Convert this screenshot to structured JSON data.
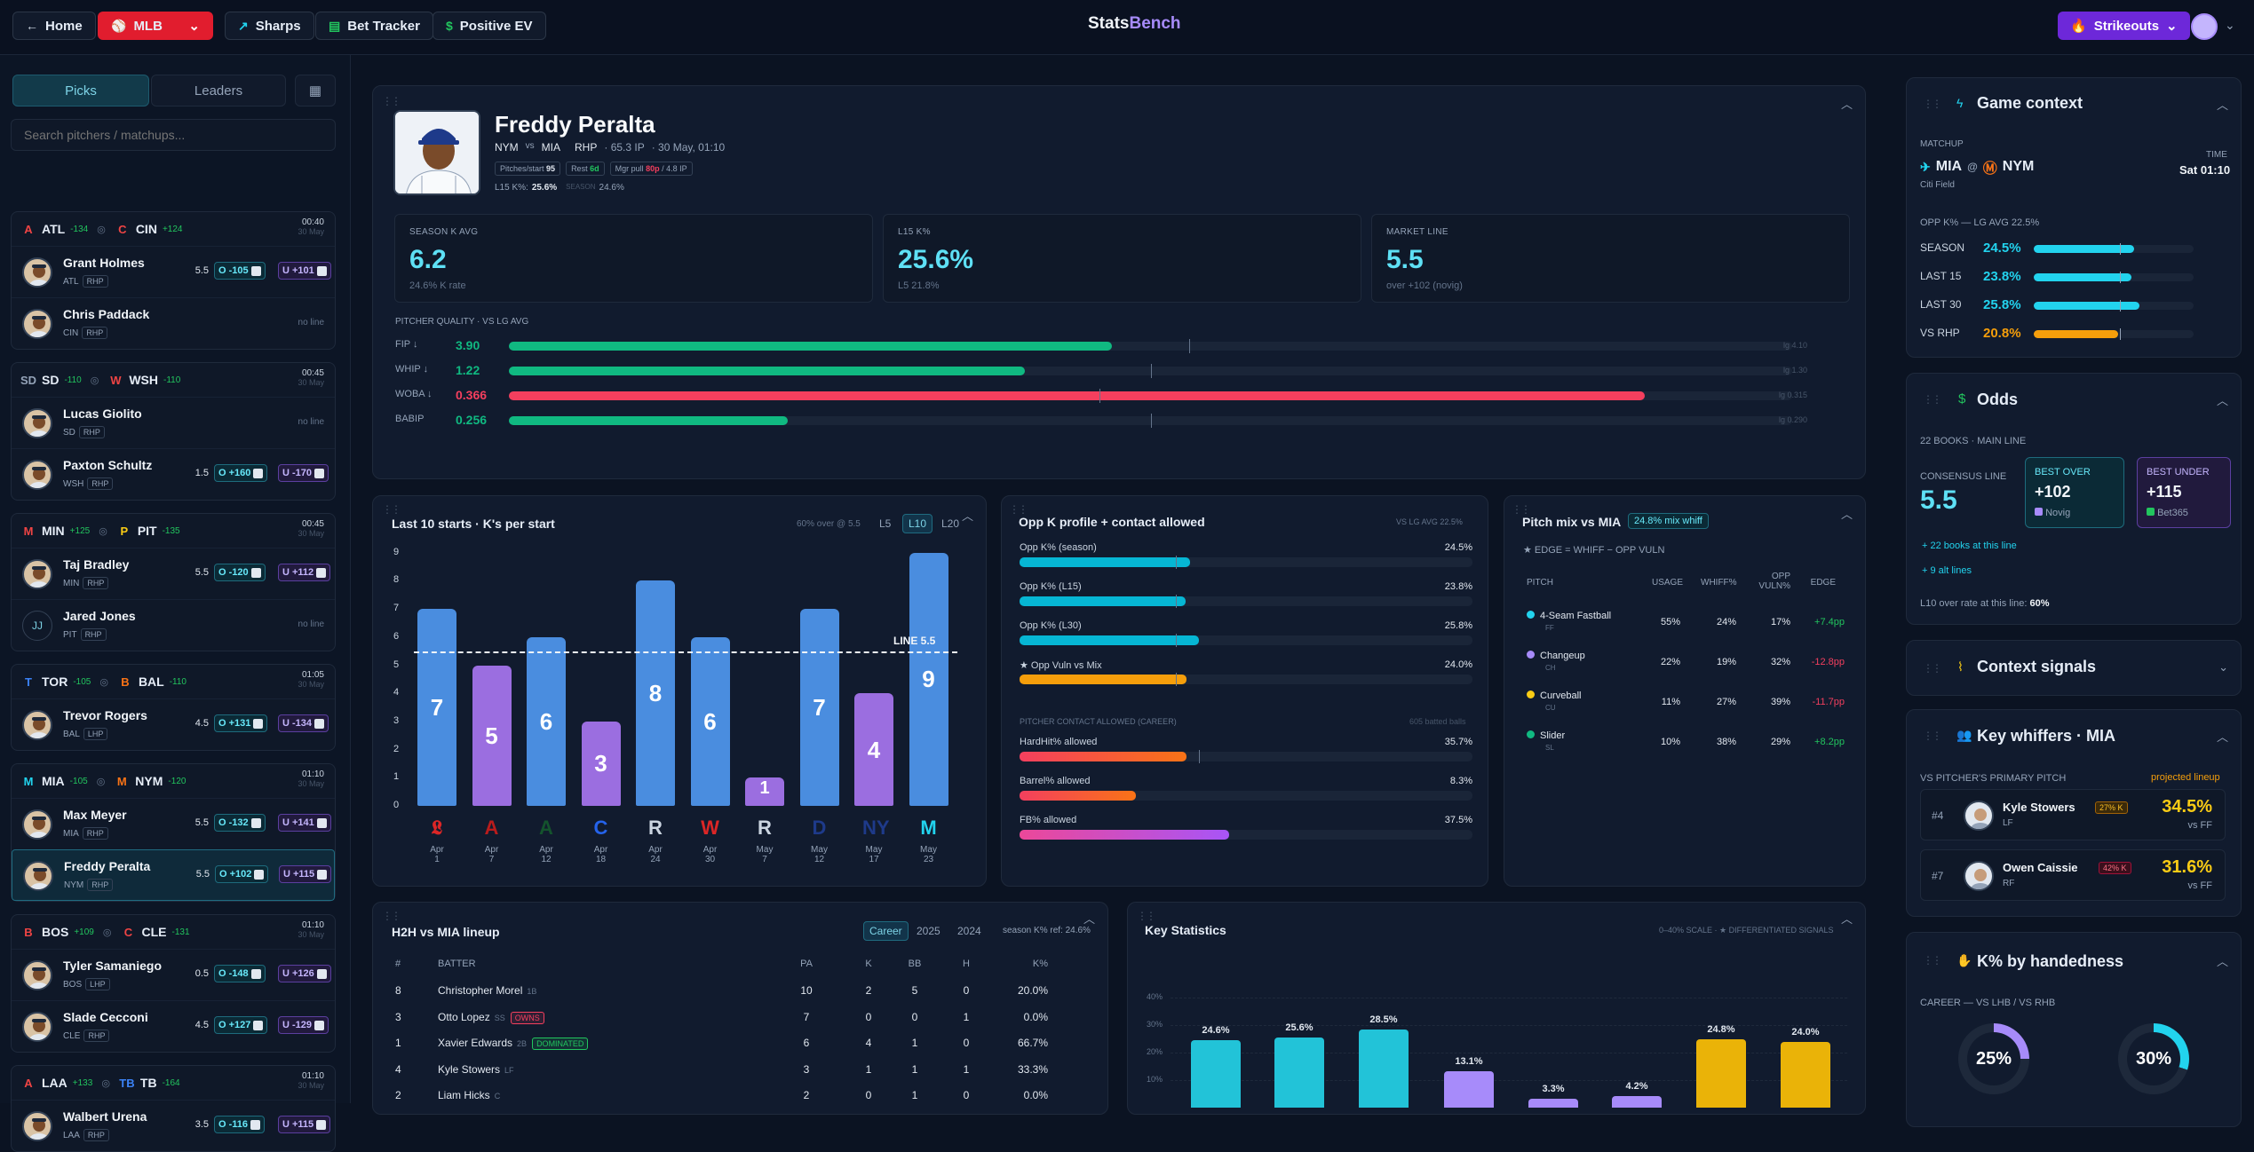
{
  "topbar": {
    "home": "Home",
    "league": "MLB",
    "sharps": "Sharps",
    "bet_tracker": "Bet Tracker",
    "positive_ev": "Positive EV",
    "logo_a": "Stats",
    "logo_b": "Bench",
    "market": "Strikeouts"
  },
  "sidebar": {
    "tab_picks": "Picks",
    "tab_leaders": "Leaders",
    "search_placeholder": "Search pitchers / matchups...",
    "games": [
      {
        "away": "ATL",
        "away_ml": "-134",
        "home": "CIN",
        "home_ml": "+124",
        "time": "00:40",
        "date": "30 May",
        "away_color": "#ef4444",
        "home_color": "#ef4444",
        "away_icon": "A",
        "home_icon": "C",
        "rows": [
          {
            "name": "Grant Holmes",
            "team": "ATL",
            "hand": "RHP",
            "line": "5.5",
            "over": "O -105",
            "under": "U +101"
          },
          {
            "name": "Chris Paddack",
            "team": "CIN",
            "hand": "RHP",
            "noline": "no line"
          }
        ]
      },
      {
        "away": "SD",
        "away_ml": "-110",
        "home": "WSH",
        "home_ml": "-110",
        "time": "00:45",
        "date": "30 May",
        "away_color": "#94a3b8",
        "home_color": "#ef4444",
        "away_icon": "SD",
        "home_icon": "W",
        "rows": [
          {
            "name": "Lucas Giolito",
            "team": "SD",
            "hand": "RHP",
            "noline": "no line"
          },
          {
            "name": "Paxton Schultz",
            "team": "WSH",
            "hand": "RHP",
            "line": "1.5",
            "over": "O +160",
            "under": "U -170"
          }
        ]
      },
      {
        "away": "MIN",
        "away_ml": "+125",
        "home": "PIT",
        "home_ml": "-135",
        "time": "00:45",
        "date": "30 May",
        "away_color": "#ef4444",
        "home_color": "#facc15",
        "away_icon": "M",
        "home_icon": "P",
        "rows": [
          {
            "name": "Taj Bradley",
            "team": "MIN",
            "hand": "RHP",
            "line": "5.5",
            "over": "O -120",
            "under": "U +112"
          },
          {
            "name": "Jared Jones",
            "team": "PIT",
            "hand": "RHP",
            "noline": "no line",
            "initials": "JJ"
          }
        ]
      },
      {
        "away": "TOR",
        "away_ml": "-105",
        "home": "BAL",
        "home_ml": "-110",
        "time": "01:05",
        "date": "30 May",
        "away_color": "#3b82f6",
        "home_color": "#f97316",
        "away_icon": "T",
        "home_icon": "B",
        "rows": [
          {
            "name": "Trevor Rogers",
            "team": "BAL",
            "hand": "LHP",
            "line": "4.5",
            "over": "O +131",
            "under": "U -134"
          }
        ]
      },
      {
        "away": "MIA",
        "away_ml": "-105",
        "home": "NYM",
        "home_ml": "-120",
        "time": "01:10",
        "date": "30 May",
        "away_color": "#22d3ee",
        "home_color": "#f97316",
        "away_icon": "M",
        "home_icon": "M",
        "rows": [
          {
            "name": "Max Meyer",
            "team": "MIA",
            "hand": "RHP",
            "line": "5.5",
            "over": "O -132",
            "under": "U +141"
          },
          {
            "name": "Freddy Peralta",
            "team": "NYM",
            "hand": "RHP",
            "line": "5.5",
            "over": "O +102",
            "under": "U +115",
            "selected": true
          }
        ]
      },
      {
        "away": "BOS",
        "away_ml": "+109",
        "home": "CLE",
        "home_ml": "-131",
        "time": "01:10",
        "date": "30 May",
        "away_color": "#ef4444",
        "home_color": "#ef4444",
        "away_icon": "B",
        "home_icon": "C",
        "rows": [
          {
            "name": "Tyler Samaniego",
            "team": "BOS",
            "hand": "LHP",
            "line": "0.5",
            "over": "O -148",
            "under": "U +126"
          },
          {
            "name": "Slade Cecconi",
            "team": "CLE",
            "hand": "RHP",
            "line": "4.5",
            "over": "O +127",
            "under": "U -129"
          }
        ]
      },
      {
        "away": "LAA",
        "away_ml": "+133",
        "home": "TB",
        "home_ml": "-164",
        "time": "01:10",
        "date": "30 May",
        "away_color": "#ef4444",
        "home_color": "#3b82f6",
        "away_icon": "A",
        "home_icon": "TB",
        "rows": [
          {
            "name": "Walbert Urena",
            "team": "LAA",
            "hand": "RHP",
            "line": "3.5",
            "over": "O -116",
            "under": "U +115"
          }
        ]
      }
    ]
  },
  "hero": {
    "name": "Freddy Peralta",
    "team": "NYM",
    "vs": "vs",
    "opp": "MIA",
    "hand": "RHP",
    "ip": "· 65.3 IP",
    "game": "· 30 May, 01:10",
    "chip1_l": "Pitches/start",
    "chip1_v": "95",
    "chip2_l": "Rest",
    "chip2_v": "6d",
    "chip3_l": "Mgr pull",
    "chip3_v": "80p",
    "chip3_s": "/ 4.8 IP",
    "l15_l": "L15 K%:",
    "l15_v": "25.6%",
    "season_l": "SEASON",
    "season_v": "24.6%",
    "stats": [
      {
        "label": "SEASON K AVG",
        "value": "6.2",
        "sub": "24.6% K rate"
      },
      {
        "label": "L15 K%",
        "value": "25.6%",
        "sub": "L5 21.8%"
      },
      {
        "label": "MARKET LINE",
        "value": "5.5",
        "sub": "over +102 (novig)"
      }
    ],
    "quality_title": "PITCHER QUALITY · VS LG AVG",
    "quality": [
      {
        "label": "FIP ↓",
        "value": "3.90",
        "lg": "lg 4.10",
        "color": "#10b981",
        "frac": 0.47,
        "lgfrac": 0.53
      },
      {
        "label": "WHIP ↓",
        "value": "1.22",
        "lg": "lg 1.30",
        "color": "#10b981",
        "frac": 0.402,
        "lgfrac": 0.5
      },
      {
        "label": "WOBA ↓",
        "value": "0.366",
        "lg": "lg 0.315",
        "color": "#f43f5e",
        "frac": 0.885,
        "lgfrac": 0.46
      },
      {
        "label": "BABIP",
        "value": "0.256",
        "lg": "lg 0.290",
        "color": "#10b981",
        "frac": 0.217,
        "lgfrac": 0.5
      }
    ]
  },
  "kchart": {
    "title": "Last 10 starts · K's per start",
    "over_note": "60% over @ 5.5",
    "tabs": [
      "L5",
      "L10",
      "L20"
    ],
    "line_label": "LINE 5.5"
  },
  "chart_data": {
    "type": "bar",
    "title": "Last 10 starts · K's per start",
    "ylim": [
      0,
      9
    ],
    "yticks": [
      "0",
      "1",
      "2",
      "3",
      "4",
      "5",
      "6",
      "7",
      "8",
      "9"
    ],
    "line": 5.5,
    "categories": [
      [
        "Apr",
        "1"
      ],
      [
        "Apr",
        "7"
      ],
      [
        "Apr",
        "12"
      ],
      [
        "Apr",
        "18"
      ],
      [
        "Apr",
        "24"
      ],
      [
        "Apr",
        "30"
      ],
      [
        "May",
        "7"
      ],
      [
        "May",
        "12"
      ],
      [
        "May",
        "17"
      ],
      [
        "May",
        "23"
      ]
    ],
    "values": [
      7,
      5,
      6,
      3,
      8,
      6,
      1,
      7,
      4,
      9
    ],
    "opp_icons": [
      {
        "g": "𝕷",
        "c": "#dc2626"
      },
      {
        "g": "A",
        "c": "#b91c1c"
      },
      {
        "g": "A",
        "c": "#14532d"
      },
      {
        "g": "C",
        "c": "#2563eb"
      },
      {
        "g": "R",
        "c": "#cbd5e1"
      },
      {
        "g": "W",
        "c": "#dc2626"
      },
      {
        "g": "R",
        "c": "#cbd5e1"
      },
      {
        "g": "D",
        "c": "#1e3a8a"
      },
      {
        "g": "NY",
        "c": "#1e3a8a"
      },
      {
        "g": "M",
        "c": "#22d3ee"
      }
    ]
  },
  "oppk": {
    "title": "Opp K profile + contact allowed",
    "note": "VS LG AVG 22.5%",
    "rows": [
      {
        "label": "Opp K% (season)",
        "value": "24.5%",
        "frac": 0.377,
        "color": "#06b6d4"
      },
      {
        "label": "Opp K% (L15)",
        "value": "23.8%",
        "frac": 0.366,
        "color": "#06b6d4"
      },
      {
        "label": "Opp K% (L30)",
        "value": "25.8%",
        "frac": 0.397,
        "color": "#06b6d4"
      },
      {
        "label": "★ Opp Vuln vs Mix",
        "value": "24.0%",
        "frac": 0.369,
        "color": "#f59e0b"
      }
    ],
    "contact_title": "PITCHER CONTACT ALLOWED (CAREER)",
    "contact_note": "605 batted balls",
    "contact": [
      {
        "label": "HardHit% allowed",
        "value": "35.7%",
        "frac": 0.368
      },
      {
        "label": "Barrel% allowed",
        "value": "8.3%",
        "frac": 0.257
      },
      {
        "label": "FB% allowed",
        "value": "37.5%",
        "frac": 0.462
      }
    ]
  },
  "pitchmix": {
    "title": "Pitch mix vs MIA",
    "badge": "24.8% mix whiff",
    "edge_note": "★ EDGE = WHIFF − OPP VULN",
    "headers": [
      "PITCH",
      "USAGE",
      "WHIFF%",
      "OPP VULN%",
      "EDGE"
    ],
    "rows": [
      {
        "name": "4-Seam Fastball",
        "code": "FF",
        "color": "#22d3ee",
        "usage": "55%",
        "whiff": "24%",
        "vuln": "17%",
        "edge": "+7.4pp",
        "pos": true
      },
      {
        "name": "Changeup",
        "code": "CH",
        "color": "#a78bfa",
        "usage": "22%",
        "whiff": "19%",
        "vuln": "32%",
        "edge": "-12.8pp",
        "pos": false
      },
      {
        "name": "Curveball",
        "code": "CU",
        "color": "#facc15",
        "usage": "11%",
        "whiff": "27%",
        "vuln": "39%",
        "edge": "-11.7pp",
        "pos": false
      },
      {
        "name": "Slider",
        "code": "SL",
        "color": "#10b981",
        "usage": "10%",
        "whiff": "38%",
        "vuln": "29%",
        "edge": "+8.2pp",
        "pos": true
      }
    ]
  },
  "h2h": {
    "title": "H2H vs MIA lineup",
    "tabs": [
      "Career",
      "2025",
      "2024"
    ],
    "ref": "season K% ref: 24.6%",
    "headers": [
      "#",
      "BATTER",
      "PA",
      "K",
      "BB",
      "H",
      "K%"
    ],
    "rows": [
      {
        "n": "8",
        "name": "Christopher Morel",
        "pos": "1B",
        "pa": "10",
        "k": "2",
        "bb": "5",
        "h": "0",
        "kp": "20.0%"
      },
      {
        "n": "3",
        "name": "Otto Lopez",
        "pos": "SS",
        "tag": "OWNS",
        "tagc": "#f43f5e",
        "pa": "7",
        "k": "0",
        "bb": "0",
        "h": "1",
        "kp": "0.0%"
      },
      {
        "n": "1",
        "name": "Xavier Edwards",
        "pos": "2B",
        "tag": "DOMINATED",
        "tagc": "#22c55e",
        "pa": "6",
        "k": "4",
        "bb": "1",
        "h": "0",
        "kp": "66.7%"
      },
      {
        "n": "4",
        "name": "Kyle Stowers",
        "pos": "LF",
        "pa": "3",
        "k": "1",
        "bb": "1",
        "h": "1",
        "kp": "33.3%"
      },
      {
        "n": "2",
        "name": "Liam Hicks",
        "pos": "C",
        "pa": "2",
        "k": "0",
        "bb": "1",
        "h": "0",
        "kp": "0.0%"
      }
    ]
  },
  "keystats": {
    "title": "Key Statistics",
    "note": "0–40% SCALE · ★ DIFFERENTIATED SIGNALS",
    "yticks": [
      "40%",
      "30%",
      "20%",
      "10%"
    ],
    "bars": [
      {
        "v": 24.6,
        "label": "24.6%",
        "c": "#22c3d8"
      },
      {
        "v": 25.6,
        "label": "25.6%",
        "c": "#22c3d8"
      },
      {
        "v": 28.5,
        "label": "28.5%",
        "c": "#22c3d8"
      },
      {
        "v": 13.1,
        "label": "13.1%",
        "c": "#a78bfa"
      },
      {
        "v": 3.3,
        "label": "3.3%",
        "c": "#a78bfa"
      },
      {
        "v": 4.2,
        "label": "4.2%",
        "c": "#a78bfa"
      },
      {
        "v": 24.8,
        "label": "24.8%",
        "c": "#eab308"
      },
      {
        "v": 24.0,
        "label": "24.0%",
        "c": "#eab308"
      }
    ]
  },
  "game": {
    "title": "Game context",
    "matchup_l": "MATCHUP",
    "away": "MIA",
    "at": "@",
    "home": "NYM",
    "park": "Citi Field",
    "time_l": "TIME",
    "time": "Sat 01:10",
    "oppk_l": "OPP K% — LG AVG 22.5%",
    "rows": [
      {
        "l": "SEASON",
        "v": "24.5%",
        "c": "#22d3ee",
        "frac": 0.63
      },
      {
        "l": "LAST 15",
        "v": "23.8%",
        "c": "#22d3ee",
        "frac": 0.61
      },
      {
        "l": "LAST 30",
        "v": "25.8%",
        "c": "#22d3ee",
        "frac": 0.66
      },
      {
        "l": "VS RHP",
        "v": "20.8%",
        "c": "#f59e0b",
        "frac": 0.53
      }
    ]
  },
  "odds": {
    "title": "Odds",
    "books": "22 BOOKS · MAIN LINE",
    "cons_l": "CONSENSUS LINE",
    "cons_v": "5.5",
    "best_over_l": "BEST OVER",
    "best_over_v": "+102",
    "best_over_book": "Novig",
    "best_under_l": "BEST UNDER",
    "best_under_v": "+115",
    "best_under_book": "Bet365",
    "link1": "+ 22 books at this line",
    "link2": "+ 9 alt lines",
    "l10_l": "L10 over rate at this line:",
    "l10_v": "60%"
  },
  "signals": {
    "title": "Context signals"
  },
  "whiffers": {
    "title": "Key whiffers · MIA",
    "sub": "VS PITCHER'S PRIMARY PITCH",
    "proj": "projected lineup",
    "rows": [
      {
        "n": "#4",
        "name": "Kyle Stowers",
        "pos": "LF",
        "k": "27% K",
        "v": "34.5%",
        "vs": "vs FF"
      },
      {
        "n": "#7",
        "name": "Owen Caissie",
        "pos": "RF",
        "k": "42% K",
        "v": "31.6%",
        "vs": "vs FF"
      }
    ]
  },
  "hand": {
    "title": "K% by handedness",
    "sub": "CAREER — VS LHB / VS RHB",
    "lhb": "25%",
    "rhb": "30%",
    "lhb_frac": 0.25,
    "rhb_frac": 0.3
  }
}
